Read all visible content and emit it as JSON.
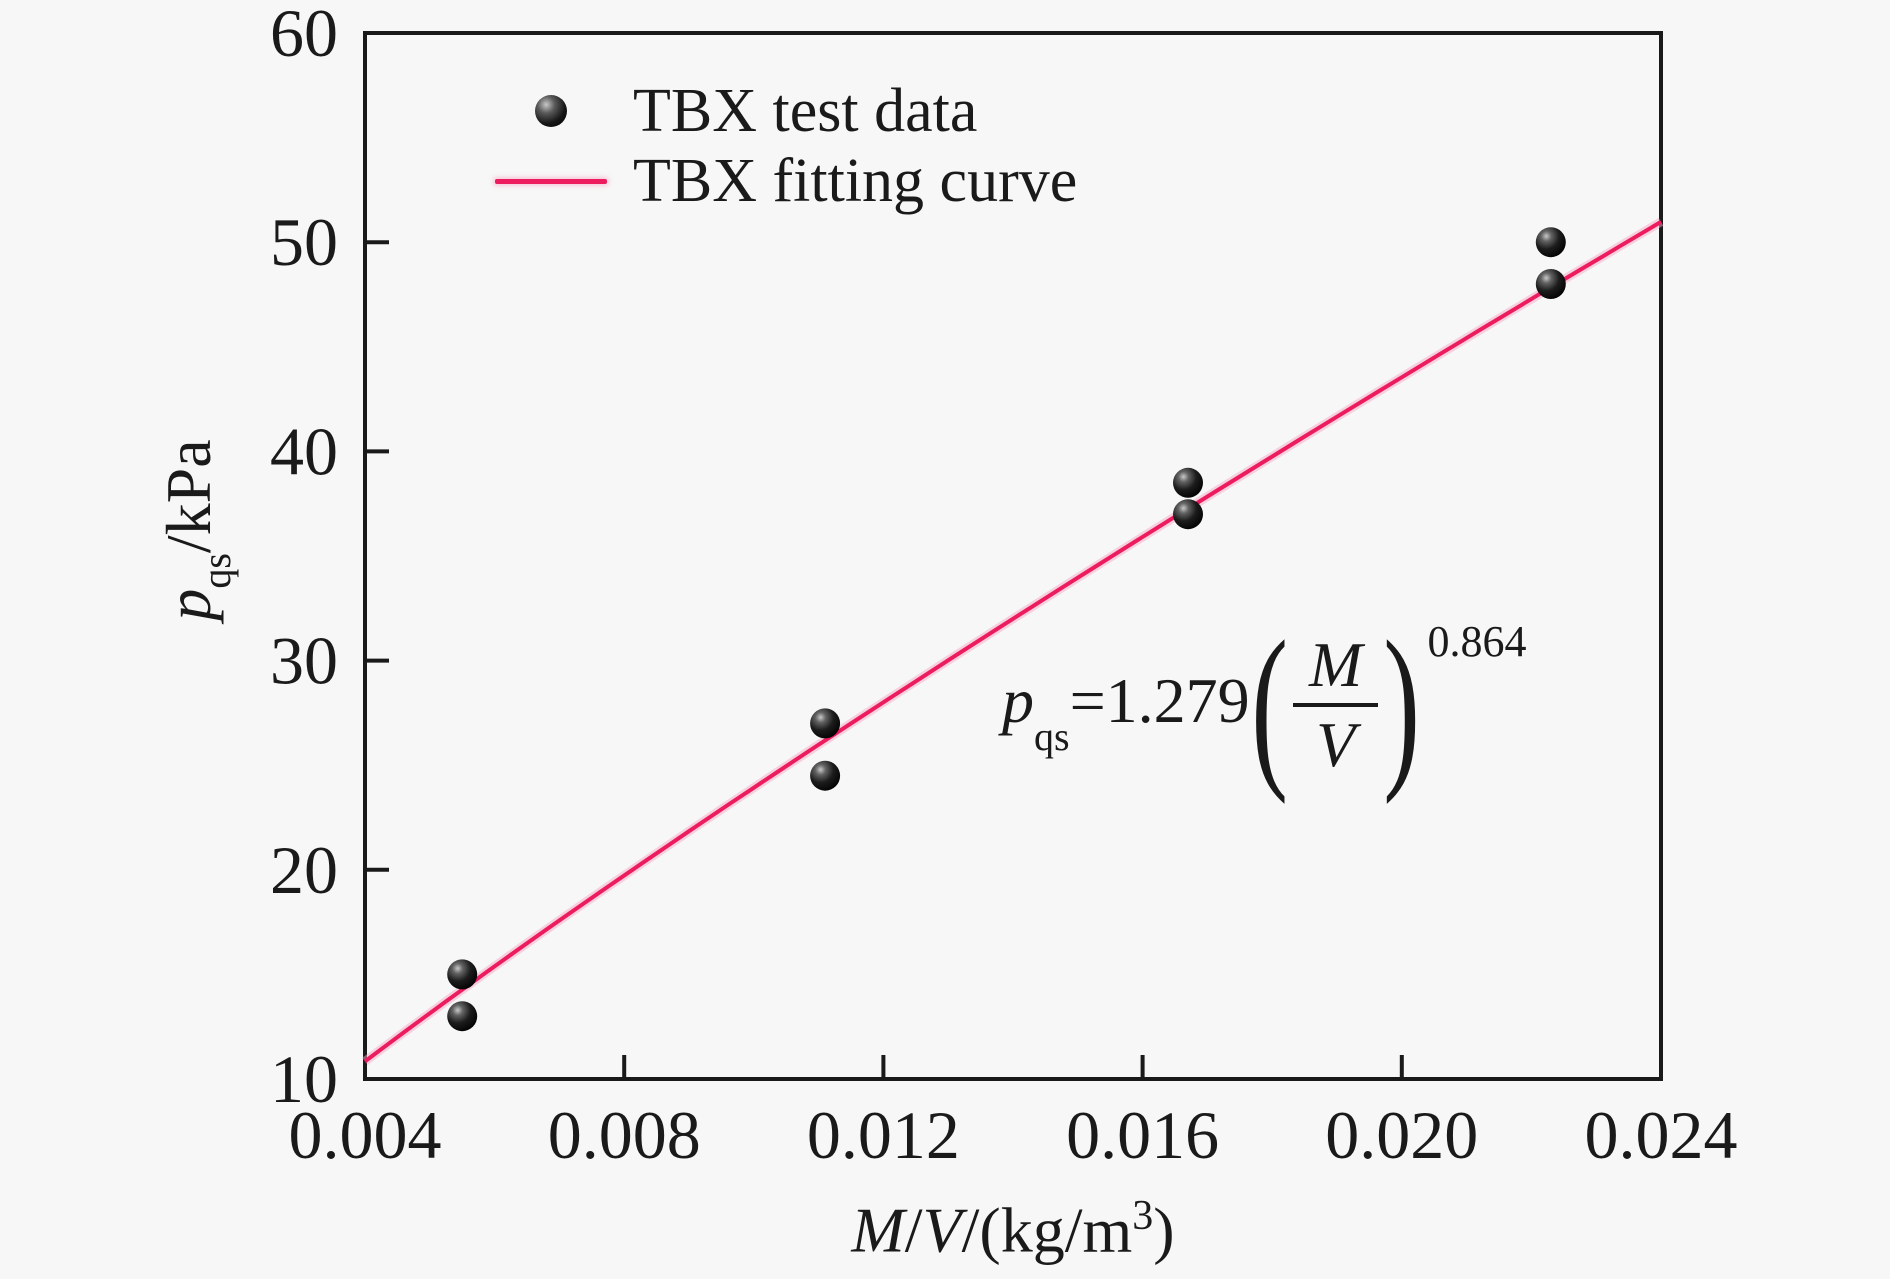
{
  "figure": {
    "background": "#f7f7f7",
    "axis_color": "#1a1a1a",
    "text_color": "#1a1a1a"
  },
  "chart_data": {
    "type": "scatter",
    "title": "",
    "grid": false,
    "x_axis": {
      "label_parts": {
        "m": "M",
        "slash": "/",
        "v": "V",
        "rest": "/(kg/m",
        "sup": "3",
        "close": ")"
      },
      "range": [
        0.004,
        0.024
      ],
      "ticks": [
        {
          "label": "0.004",
          "value": 0.004
        },
        {
          "label": "0.008",
          "value": 0.008
        },
        {
          "label": "0.012",
          "value": 0.012
        },
        {
          "label": "0.016",
          "value": 0.016
        },
        {
          "label": "0.020",
          "value": 0.02
        },
        {
          "label": "0.024",
          "value": 0.024
        }
      ]
    },
    "y_axis": {
      "label_parts": {
        "p": "p",
        "sub": "qs",
        "rest": "/kPa"
      },
      "range": [
        10,
        60
      ],
      "ticks": [
        {
          "label": "10",
          "value": 10
        },
        {
          "label": "20",
          "value": 20
        },
        {
          "label": "30",
          "value": 30
        },
        {
          "label": "40",
          "value": 40
        },
        {
          "label": "50",
          "value": 50
        },
        {
          "label": "60",
          "value": 60
        }
      ]
    },
    "series": [
      {
        "name": "TBX test data",
        "type": "scatter",
        "marker": "sphere",
        "color": "#111111",
        "points": [
          [
            0.0055,
            15
          ],
          [
            0.0055,
            13
          ],
          [
            0.0111,
            27
          ],
          [
            0.0111,
            24.5
          ],
          [
            0.0167,
            38.5
          ],
          [
            0.0167,
            37
          ],
          [
            0.0223,
            50
          ],
          [
            0.0223,
            48
          ]
        ]
      },
      {
        "name": "TBX fitting curve",
        "type": "line",
        "color": "#EC1C5F",
        "glow_color": "#F6AAC6",
        "fit": {
          "type": "power",
          "a": 1279,
          "b": 0.864,
          "x_start": 0.004,
          "x_end": 0.024
        }
      }
    ],
    "legend": {
      "position": "top-left-inside",
      "items": [
        {
          "label": "TBX test data",
          "marker": "point"
        },
        {
          "label": "TBX fitting curve",
          "marker": "line"
        }
      ]
    },
    "equation": {
      "p": "p",
      "sub": "qs",
      "equals": "=1.279",
      "open_paren": "(",
      "numerator": "M",
      "denominator": "V",
      "close_paren": ")",
      "exponent": "0.864"
    }
  }
}
